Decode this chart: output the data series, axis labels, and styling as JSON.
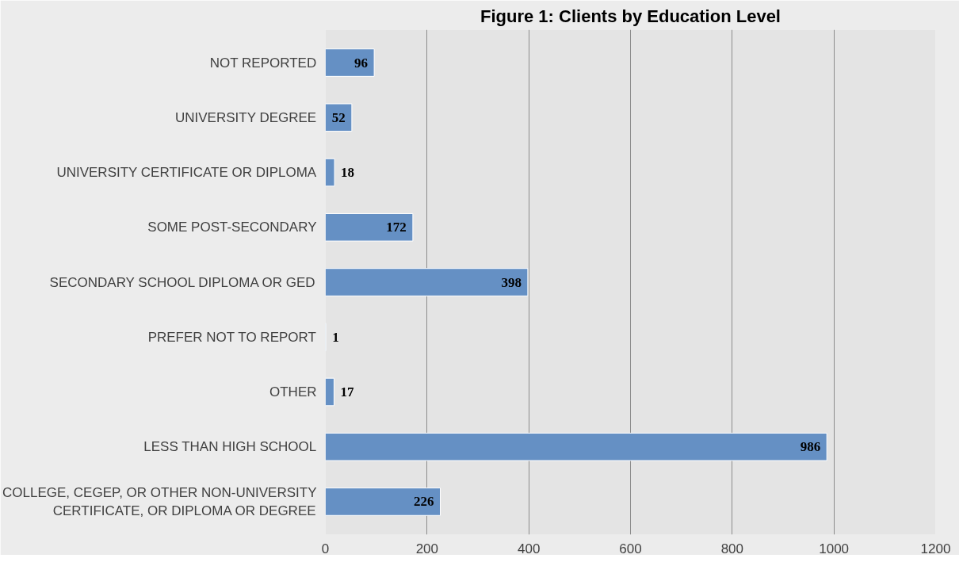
{
  "chart_data": {
    "type": "bar",
    "orientation": "horizontal",
    "title": "Figure 1: Clients by Education Level",
    "categories": [
      "NOT REPORTED",
      "UNIVERSITY DEGREE",
      "UNIVERSITY CERTIFICATE OR DIPLOMA",
      "SOME POST-SECONDARY",
      "SECONDARY SCHOOL DIPLOMA OR GED",
      "PREFER NOT TO REPORT",
      "OTHER",
      "LESS THAN HIGH SCHOOL",
      "COLLEGE, CEGEP, OR OTHER NON-UNIVERSITY CERTIFICATE, OR DIPLOMA OR DEGREE"
    ],
    "values": [
      96,
      52,
      18,
      172,
      398,
      1,
      17,
      986,
      226
    ],
    "color": "#6590c4",
    "xlim": [
      0,
      1200
    ],
    "xticks": [
      0,
      200,
      400,
      600,
      800,
      1000,
      1200
    ],
    "grid": "x",
    "data_labels": true
  }
}
